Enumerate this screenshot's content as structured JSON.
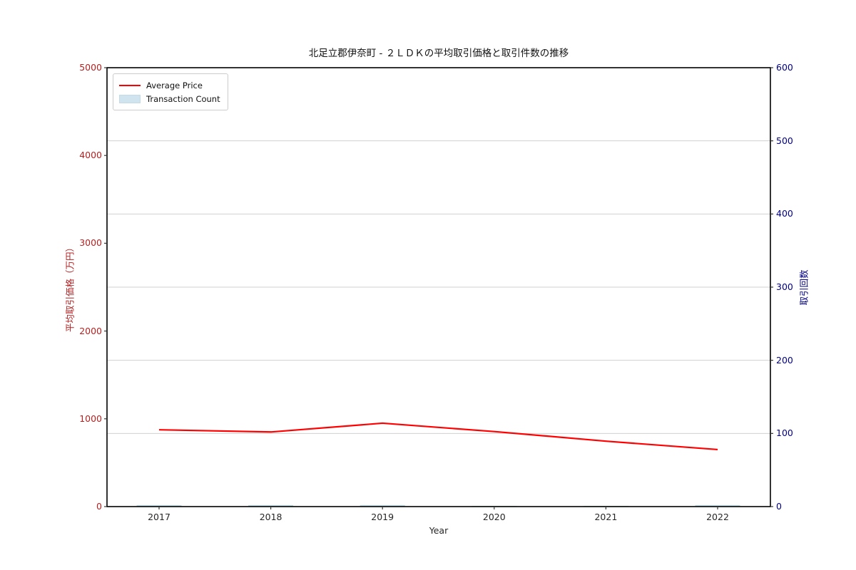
{
  "chart_data": {
    "type": "line+bar combo",
    "title": "北足立郡伊奈町 - ２ＬＤＫの平均取引価格と取引件数の推移",
    "xlabel": "Year",
    "ylabel_left": "平均取引価格（万円）",
    "ylabel_right": "取引回数",
    "categories": [
      "2017",
      "2018",
      "2019",
      "2020",
      "2021",
      "2022"
    ],
    "series": [
      {
        "name": "Average Price",
        "type": "line",
        "axis": "left",
        "color": "#ff0000",
        "values": [
          875,
          850,
          950,
          855,
          745,
          650
        ]
      },
      {
        "name": "Transaction Count",
        "type": "bar",
        "axis": "right",
        "color": "#add8e6",
        "values": [
          2,
          2,
          2,
          1,
          1,
          2
        ]
      }
    ],
    "y_left_axis": {
      "min": 0,
      "max": 5000,
      "ticks": [
        0,
        1000,
        2000,
        3000,
        4000,
        5000
      ],
      "tick_color": "#b22222"
    },
    "y_right_axis": {
      "min": 0,
      "max": 600,
      "ticks": [
        0,
        100,
        200,
        300,
        400,
        500,
        600
      ],
      "tick_color": "#00008b"
    },
    "grid": {
      "horizontal_at_right_ticks": [
        100,
        200,
        300,
        400,
        500
      ],
      "color": "#d0d0d0"
    },
    "legend": {
      "position": "upper left",
      "entries": [
        "Average Price",
        "Transaction Count"
      ]
    }
  }
}
